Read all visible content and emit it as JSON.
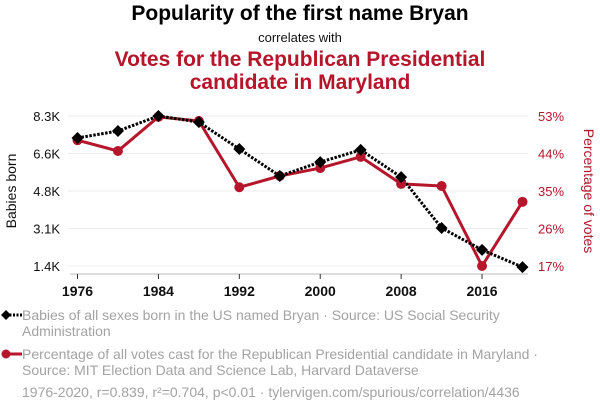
{
  "header": {
    "title": "Popularity of the first name Bryan",
    "connector": "correlates with",
    "subtitle": "Votes for the Republican Presidential candidate in Maryland"
  },
  "colors": {
    "series1": "#000000",
    "series2": "#b5162b",
    "muted_text": "#a3a3a3",
    "grid": "#eeeeee"
  },
  "legend": {
    "series1": "Babies of all sexes born in the US named Bryan · Source: US Social Security Administration",
    "series2": "Percentage of all votes cast for the Republican Presidential candidate in Maryland · Source: MIT Election Data and Science Lab, Harvard Dataverse"
  },
  "footer": "1976-2020, r=0.839, r²=0.704, p<0.01 · tylervigen.com/spurious/correlation/4436",
  "chart_data": {
    "type": "line",
    "title": "Popularity of the first name Bryan correlates with Votes for the Republican Presidential candidate in Maryland",
    "x": [
      1976,
      1980,
      1984,
      1988,
      1992,
      1996,
      2000,
      2004,
      2008,
      2012,
      2016,
      2020
    ],
    "xticks": [
      "1976",
      "1984",
      "1992",
      "2000",
      "2008",
      "2016"
    ],
    "xlim": [
      1976,
      2020
    ],
    "grid": true,
    "legend_position": "bottom",
    "series": [
      {
        "name": "Babies of all sexes born in the US named Bryan",
        "axis": "left",
        "style": "dotted",
        "marker": "diamond",
        "values": [
          7290,
          7610,
          8300,
          8020,
          6780,
          5540,
          6180,
          6740,
          5490,
          3150,
          2140,
          1350
        ]
      },
      {
        "name": "Percentage of all votes cast for the Republican Presidential candidate in Maryland",
        "axis": "right",
        "style": "solid",
        "marker": "circle",
        "values": [
          47.2,
          44.6,
          52.8,
          51.8,
          35.9,
          38.6,
          40.5,
          43.2,
          36.7,
          36.2,
          17.0,
          32.4
        ]
      }
    ],
    "y_left": {
      "label": "Babies born",
      "ticks": [
        "8.3K",
        "6.6K",
        "4.8K",
        "3.1K",
        "1.4K"
      ],
      "ylim": [
        1400,
        8300
      ]
    },
    "y_right": {
      "label": "Percentage of votes",
      "ticks": [
        "53%",
        "44%",
        "35%",
        "26%",
        "17%"
      ],
      "ylim": [
        17,
        53
      ]
    }
  }
}
